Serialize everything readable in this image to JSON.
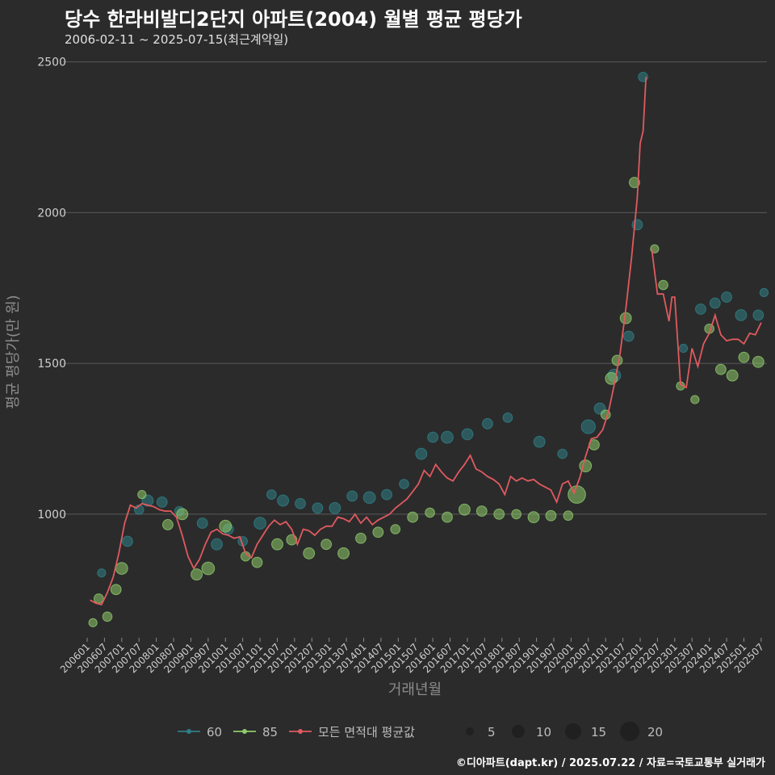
{
  "header": {
    "title": "당수 한라비발디2단지 아파트(2004) 월별 평균 평당가",
    "subtitle": "2006-02-11 ~ 2025-07-15(최근계약일)"
  },
  "footer": {
    "credit": "©디아파트(dapt.kr) / 2025.07.22 / 자료=국토교통부 실거래가"
  },
  "colors": {
    "background": "#2b2b2c",
    "grid": "#5a5a5a",
    "series_60": "#2f7f86",
    "series_85": "#8fcb6a",
    "series_avg": "#e05a5e"
  },
  "chart_data": {
    "type": "line",
    "title": "당수 한라비발디2단지 아파트(2004) 월별 평균 평당가",
    "subtitle": "2006-02-11 ~ 2025-07-15(최근계약일)",
    "xlabel": "거래년월",
    "ylabel": "평균 평당가(만 원)",
    "ylim": [
      590,
      2550
    ],
    "yticks": [
      1000,
      1500,
      2000,
      2500
    ],
    "xticks": [
      "200601",
      "200607",
      "200701",
      "200707",
      "200801",
      "200807",
      "200901",
      "200907",
      "201001",
      "201007",
      "201101",
      "201107",
      "201201",
      "201207",
      "201301",
      "201307",
      "201401",
      "201407",
      "201501",
      "201507",
      "201601",
      "201607",
      "201701",
      "201707",
      "201801",
      "201807",
      "201901",
      "201907",
      "202001",
      "202007",
      "202101",
      "202107",
      "202201",
      "202207",
      "202301",
      "202307",
      "202401",
      "202407",
      "202501",
      "202507"
    ],
    "grid": "horizontal",
    "legend": {
      "position": "bottom",
      "series_labels": [
        "60",
        "85",
        "모든 면적대 평균값"
      ],
      "size_labels": [
        "5",
        "10",
        "15",
        "20"
      ]
    },
    "series": [
      {
        "name": "모든 면적대 평균값",
        "kind": "line",
        "points": [
          [
            "2006-02",
            715
          ],
          [
            "2006-04",
            705
          ],
          [
            "2006-06",
            700
          ],
          [
            "2006-08",
            740
          ],
          [
            "2006-10",
            790
          ],
          [
            "2006-12",
            870
          ],
          [
            "2007-02",
            970
          ],
          [
            "2007-04",
            1030
          ],
          [
            "2007-06",
            1020
          ],
          [
            "2007-08",
            1035
          ],
          [
            "2007-10",
            1030
          ],
          [
            "2007-12",
            1025
          ],
          [
            "2008-02",
            1015
          ],
          [
            "2008-04",
            1010
          ],
          [
            "2008-06",
            1010
          ],
          [
            "2008-08",
            990
          ],
          [
            "2008-10",
            930
          ],
          [
            "2008-12",
            860
          ],
          [
            "2009-02",
            820
          ],
          [
            "2009-04",
            850
          ],
          [
            "2009-06",
            900
          ],
          [
            "2009-08",
            940
          ],
          [
            "2009-10",
            950
          ],
          [
            "2009-12",
            935
          ],
          [
            "2010-02",
            930
          ],
          [
            "2010-04",
            920
          ],
          [
            "2010-06",
            925
          ],
          [
            "2010-08",
            870
          ],
          [
            "2010-10",
            855
          ],
          [
            "2010-12",
            900
          ],
          [
            "2011-02",
            930
          ],
          [
            "2011-04",
            960
          ],
          [
            "2011-06",
            980
          ],
          [
            "2011-08",
            965
          ],
          [
            "2011-10",
            975
          ],
          [
            "2011-12",
            950
          ],
          [
            "2012-02",
            900
          ],
          [
            "2012-04",
            950
          ],
          [
            "2012-06",
            945
          ],
          [
            "2012-08",
            930
          ],
          [
            "2012-10",
            950
          ],
          [
            "2012-12",
            960
          ],
          [
            "2013-02",
            960
          ],
          [
            "2013-04",
            990
          ],
          [
            "2013-06",
            985
          ],
          [
            "2013-08",
            975
          ],
          [
            "2013-10",
            1000
          ],
          [
            "2013-12",
            970
          ],
          [
            "2014-02",
            990
          ],
          [
            "2014-04",
            965
          ],
          [
            "2014-06",
            980
          ],
          [
            "2014-08",
            990
          ],
          [
            "2014-10",
            1000
          ],
          [
            "2014-12",
            1020
          ],
          [
            "2015-02",
            1035
          ],
          [
            "2015-04",
            1050
          ],
          [
            "2015-06",
            1075
          ],
          [
            "2015-08",
            1100
          ],
          [
            "2015-10",
            1145
          ],
          [
            "2015-12",
            1125
          ],
          [
            "2016-02",
            1165
          ],
          [
            "2016-04",
            1140
          ],
          [
            "2016-06",
            1120
          ],
          [
            "2016-08",
            1110
          ],
          [
            "2016-10",
            1140
          ],
          [
            "2016-12",
            1165
          ],
          [
            "2017-02",
            1195
          ],
          [
            "2017-04",
            1150
          ],
          [
            "2017-06",
            1140
          ],
          [
            "2017-08",
            1125
          ],
          [
            "2017-10",
            1115
          ],
          [
            "2017-12",
            1100
          ],
          [
            "2018-02",
            1065
          ],
          [
            "2018-04",
            1125
          ],
          [
            "2018-06",
            1110
          ],
          [
            "2018-08",
            1120
          ],
          [
            "2018-10",
            1110
          ],
          [
            "2018-12",
            1115
          ],
          [
            "2019-02",
            1100
          ],
          [
            "2019-04",
            1090
          ],
          [
            "2019-06",
            1080
          ],
          [
            "2019-08",
            1040
          ],
          [
            "2019-10",
            1100
          ],
          [
            "2019-12",
            1110
          ],
          [
            "2020-02",
            1070
          ],
          [
            "2020-04",
            1120
          ],
          [
            "2020-06",
            1190
          ],
          [
            "2020-08",
            1250
          ],
          [
            "2020-10",
            1255
          ],
          [
            "2020-12",
            1280
          ],
          [
            "2021-02",
            1340
          ],
          [
            "2021-04",
            1430
          ],
          [
            "2021-06",
            1530
          ],
          [
            "2021-08",
            1680
          ],
          [
            "2021-10",
            1850
          ],
          [
            "2021-12",
            2050
          ],
          [
            "2022-01",
            2230
          ],
          [
            "2022-02",
            2270
          ],
          [
            "2022-03",
            2450
          ],
          null,
          [
            "2022-05",
            1880
          ],
          [
            "2022-07",
            1730
          ],
          [
            "2022-09",
            1730
          ],
          [
            "2022-11",
            1640
          ],
          [
            "2022-12",
            1720
          ],
          [
            "2023-01",
            1720
          ],
          [
            "2023-03",
            1430
          ],
          [
            "2023-05",
            1420
          ],
          [
            "2023-07",
            1550
          ],
          [
            "2023-09",
            1490
          ],
          [
            "2023-11",
            1565
          ],
          [
            "2024-01",
            1600
          ],
          [
            "2024-03",
            1660
          ],
          [
            "2024-05",
            1595
          ],
          [
            "2024-07",
            1575
          ],
          [
            "2024-09",
            1580
          ],
          [
            "2024-11",
            1580
          ],
          [
            "2025-01",
            1565
          ],
          [
            "2025-03",
            1600
          ],
          [
            "2025-05",
            1595
          ],
          [
            "2025-07",
            1635
          ]
        ]
      },
      {
        "name": "60",
        "kind": "bubble",
        "points": [
          [
            "2006-06",
            805,
            2
          ],
          [
            "2007-03",
            910,
            4
          ],
          [
            "2007-07",
            1015,
            3
          ],
          [
            "2007-10",
            1045,
            5
          ],
          [
            "2008-03",
            1040,
            4
          ],
          [
            "2008-09",
            1010,
            3
          ],
          [
            "2009-05",
            970,
            4
          ],
          [
            "2009-10",
            900,
            5
          ],
          [
            "2010-02",
            950,
            4
          ],
          [
            "2010-07",
            910,
            3
          ],
          [
            "2011-01",
            970,
            6
          ],
          [
            "2011-05",
            1065,
            3
          ],
          [
            "2011-09",
            1045,
            5
          ],
          [
            "2012-03",
            1035,
            4
          ],
          [
            "2012-09",
            1020,
            4
          ],
          [
            "2013-03",
            1020,
            5
          ],
          [
            "2013-09",
            1060,
            4
          ],
          [
            "2014-03",
            1055,
            6
          ],
          [
            "2014-09",
            1065,
            4
          ],
          [
            "2015-03",
            1100,
            3
          ],
          [
            "2015-09",
            1200,
            5
          ],
          [
            "2016-01",
            1255,
            4
          ],
          [
            "2016-06",
            1255,
            6
          ],
          [
            "2017-01",
            1265,
            5
          ],
          [
            "2017-08",
            1300,
            4
          ],
          [
            "2018-03",
            1320,
            3
          ],
          [
            "2019-02",
            1240,
            5
          ],
          [
            "2019-10",
            1200,
            3
          ],
          [
            "2020-07",
            1290,
            9
          ],
          [
            "2020-11",
            1350,
            5
          ],
          [
            "2021-04",
            1460,
            7
          ],
          [
            "2021-09",
            1590,
            4
          ],
          [
            "2021-12",
            1960,
            4
          ],
          [
            "2022-02",
            2450,
            3
          ],
          [
            "2023-04",
            1550,
            2
          ],
          [
            "2023-10",
            1680,
            4
          ],
          [
            "2024-03",
            1700,
            4
          ],
          [
            "2024-07",
            1720,
            4
          ],
          [
            "2024-12",
            1660,
            5
          ],
          [
            "2025-06",
            1660,
            4
          ],
          [
            "2025-08",
            1735,
            2
          ]
        ]
      },
      {
        "name": "85",
        "kind": "bubble",
        "points": [
          [
            "2006-03",
            640,
            2
          ],
          [
            "2006-05",
            720,
            3
          ],
          [
            "2006-08",
            660,
            3
          ],
          [
            "2006-11",
            750,
            4
          ],
          [
            "2007-01",
            820,
            6
          ],
          [
            "2007-08",
            1065,
            2
          ],
          [
            "2008-05",
            965,
            4
          ],
          [
            "2008-10",
            1000,
            5
          ],
          [
            "2009-03",
            800,
            5
          ],
          [
            "2009-07",
            820,
            7
          ],
          [
            "2010-01",
            960,
            6
          ],
          [
            "2010-08",
            860,
            3
          ],
          [
            "2010-12",
            840,
            4
          ],
          [
            "2011-07",
            900,
            5
          ],
          [
            "2011-12",
            915,
            4
          ],
          [
            "2012-06",
            870,
            5
          ],
          [
            "2012-12",
            900,
            4
          ],
          [
            "2013-06",
            870,
            5
          ],
          [
            "2013-12",
            920,
            4
          ],
          [
            "2014-06",
            940,
            4
          ],
          [
            "2014-12",
            950,
            3
          ],
          [
            "2015-06",
            990,
            4
          ],
          [
            "2015-12",
            1005,
            3
          ],
          [
            "2016-06",
            990,
            4
          ],
          [
            "2016-12",
            1015,
            5
          ],
          [
            "2017-06",
            1010,
            4
          ],
          [
            "2017-12",
            1000,
            4
          ],
          [
            "2018-06",
            1000,
            3
          ],
          [
            "2018-12",
            990,
            5
          ],
          [
            "2019-06",
            995,
            4
          ],
          [
            "2019-12",
            995,
            3
          ],
          [
            "2020-03",
            1065,
            16
          ],
          [
            "2020-06",
            1160,
            6
          ],
          [
            "2020-09",
            1230,
            4
          ],
          [
            "2021-01",
            1330,
            3
          ],
          [
            "2021-03",
            1450,
            6
          ],
          [
            "2021-05",
            1510,
            4
          ],
          [
            "2021-08",
            1650,
            5
          ],
          [
            "2021-11",
            2100,
            4
          ],
          [
            "2022-06",
            1880,
            2
          ],
          [
            "2022-09",
            1760,
            3
          ],
          [
            "2023-03",
            1425,
            2
          ],
          [
            "2023-08",
            1380,
            2
          ],
          [
            "2024-01",
            1615,
            3
          ],
          [
            "2024-05",
            1480,
            4
          ],
          [
            "2024-09",
            1460,
            5
          ],
          [
            "2025-01",
            1520,
            4
          ],
          [
            "2025-06",
            1505,
            5
          ]
        ]
      }
    ]
  }
}
